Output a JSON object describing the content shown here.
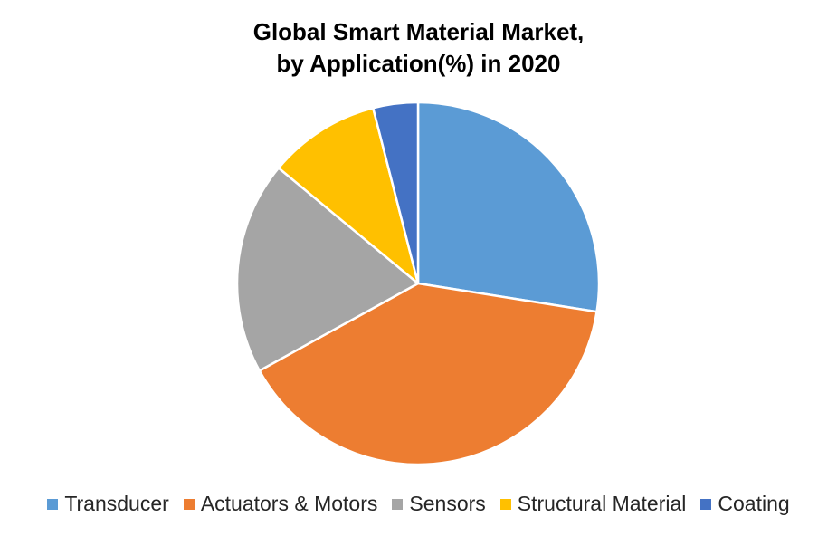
{
  "chart_data": {
    "type": "pie",
    "title_line1": "Global Smart Material Market,",
    "title_line2": "by Application(%) in 2020",
    "categories": [
      "Transducer",
      "Actuators & Motors",
      "Sensors",
      "Structural Material",
      "Coating"
    ],
    "values": [
      27.5,
      39.5,
      19,
      10,
      4
    ],
    "colors": [
      "#5B9BD5",
      "#ED7D31",
      "#A5A5A5",
      "#FFC000",
      "#4472C4"
    ],
    "legend_position": "bottom",
    "start_angle": "12 o'clock",
    "direction": "clockwise"
  }
}
